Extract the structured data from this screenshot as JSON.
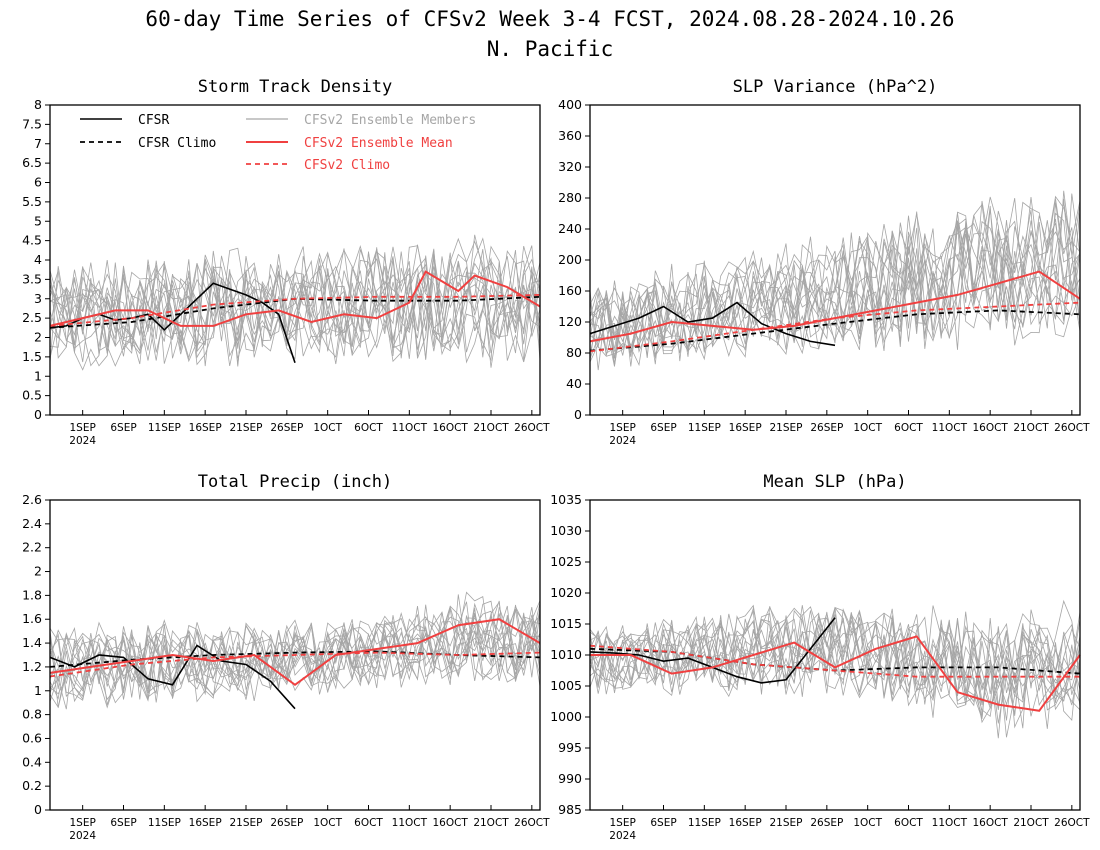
{
  "title": "60-day Time Series of CFSv2 Week 3-4 FCST, 2024.08.28-2024.10.26",
  "subtitle": "N. Pacific",
  "colors": {
    "cfsr": "#000000",
    "ensemble_members": "#a6a6a6",
    "ensemble_mean": "#f04040",
    "cfsv2_climo": "#f04040"
  },
  "legend": {
    "cfsr": "CFSR",
    "cfsr_climo": "CFSR Climo",
    "members": "CFSv2 Ensemble Members",
    "mean": "CFSv2 Ensemble Mean",
    "cfsv2_climo": "CFSv2 Climo"
  },
  "x_ticks": [
    "1SEP",
    "6SEP",
    "11SEP",
    "16SEP",
    "21SEP",
    "26SEP",
    "1OCT",
    "6OCT",
    "11OCT",
    "16OCT",
    "21OCT",
    "26OCT"
  ],
  "x_year": "2024",
  "chart_data": [
    {
      "type": "line",
      "title": "Storm Track Density",
      "xlabel": "",
      "ylabel": "",
      "ylim": [
        0,
        8
      ],
      "yticks": [
        "0",
        "0.5",
        "1",
        "1.5",
        "2",
        "2.5",
        "3",
        "3.5",
        "4",
        "4.5",
        "5",
        "5.5",
        "6",
        "6.5",
        "7",
        "7.5",
        "8"
      ],
      "grid": false,
      "legend_position": "top",
      "series": [
        {
          "name": "CFSR",
          "style": "solid-black",
          "x": [
            0,
            2,
            4,
            6,
            8,
            10,
            12,
            14,
            16,
            18,
            20,
            22,
            24,
            26,
            28,
            30
          ],
          "y": [
            2.25,
            2.3,
            2.5,
            2.6,
            2.45,
            2.5,
            2.6,
            2.2,
            2.6,
            3.0,
            3.4,
            3.25,
            3.1,
            2.9,
            2.6,
            1.35
          ]
        },
        {
          "name": "CFSR Climo",
          "style": "dashed-black",
          "x": [
            0,
            10,
            20,
            30,
            40,
            50,
            60
          ],
          "y": [
            2.25,
            2.4,
            2.75,
            3.0,
            2.95,
            2.95,
            3.05
          ]
        },
        {
          "name": "CFSv2 Ensemble Mean",
          "style": "solid-red",
          "x": [
            0,
            4,
            8,
            12,
            16,
            20,
            24,
            28,
            32,
            36,
            40,
            44,
            46,
            50,
            52,
            56,
            60
          ],
          "y": [
            2.3,
            2.5,
            2.7,
            2.7,
            2.3,
            2.3,
            2.6,
            2.7,
            2.4,
            2.6,
            2.5,
            2.9,
            3.7,
            3.2,
            3.6,
            3.3,
            2.8
          ]
        },
        {
          "name": "CFSv2 Climo",
          "style": "dashed-red",
          "x": [
            0,
            10,
            20,
            30,
            40,
            50,
            60
          ],
          "y": [
            2.3,
            2.5,
            2.85,
            3.0,
            3.05,
            3.05,
            3.1
          ]
        }
      ],
      "ensemble_spread": {
        "lower": [
          1.0,
          1.0,
          1.1,
          1.1,
          1.2,
          1.0,
          1.0
        ],
        "upper": [
          4.2,
          4.3,
          4.4,
          4.5,
          4.6,
          4.7,
          4.8
        ]
      }
    },
    {
      "type": "line",
      "title": "SLP Variance (hPa^2)",
      "xlabel": "",
      "ylabel": "",
      "ylim": [
        0,
        400
      ],
      "yticks": [
        "0",
        "40",
        "80",
        "120",
        "160",
        "200",
        "240",
        "280",
        "320",
        "360",
        "400"
      ],
      "grid": false,
      "series": [
        {
          "name": "CFSR",
          "style": "solid-black",
          "x": [
            0,
            3,
            6,
            9,
            12,
            15,
            18,
            21,
            24,
            27,
            30
          ],
          "y": [
            105,
            115,
            125,
            140,
            120,
            125,
            145,
            118,
            105,
            95,
            90
          ]
        },
        {
          "name": "CFSR Climo",
          "style": "dashed-black",
          "x": [
            0,
            10,
            20,
            30,
            40,
            50,
            60
          ],
          "y": [
            83,
            92,
            105,
            118,
            130,
            135,
            130
          ]
        },
        {
          "name": "CFSv2 Ensemble Mean",
          "style": "solid-red",
          "x": [
            0,
            5,
            10,
            15,
            20,
            25,
            30,
            35,
            40,
            45,
            50,
            55,
            60
          ],
          "y": [
            95,
            105,
            120,
            115,
            110,
            115,
            125,
            135,
            145,
            155,
            170,
            185,
            150
          ]
        },
        {
          "name": "CFSv2 Climo",
          "style": "dashed-red",
          "x": [
            0,
            10,
            20,
            30,
            40,
            50,
            60
          ],
          "y": [
            82,
            95,
            110,
            125,
            135,
            140,
            145
          ]
        }
      ],
      "ensemble_spread": {
        "lower": [
          50,
          60,
          60,
          65,
          70,
          80,
          90
        ],
        "upper": [
          170,
          200,
          220,
          250,
          270,
          300,
          310
        ]
      }
    },
    {
      "type": "line",
      "title": "Total Precip (inch)",
      "xlabel": "",
      "ylabel": "",
      "ylim": [
        0,
        2.6
      ],
      "yticks": [
        "0",
        "0.2",
        "0.4",
        "0.6",
        "0.8",
        "1",
        "1.2",
        "1.4",
        "1.6",
        "1.8",
        "2",
        "2.2",
        "2.4",
        "2.6"
      ],
      "grid": false,
      "series": [
        {
          "name": "CFSR",
          "style": "solid-black",
          "x": [
            0,
            3,
            6,
            9,
            12,
            15,
            18,
            21,
            24,
            27,
            30
          ],
          "y": [
            1.28,
            1.2,
            1.3,
            1.28,
            1.1,
            1.05,
            1.38,
            1.25,
            1.22,
            1.08,
            0.85
          ]
        },
        {
          "name": "CFSR Climo",
          "style": "dashed-black",
          "x": [
            0,
            10,
            20,
            30,
            40,
            50,
            60
          ],
          "y": [
            1.2,
            1.26,
            1.3,
            1.32,
            1.33,
            1.3,
            1.28
          ]
        },
        {
          "name": "CFSv2 Ensemble Mean",
          "style": "solid-red",
          "x": [
            0,
            5,
            10,
            15,
            20,
            25,
            30,
            35,
            40,
            45,
            50,
            55,
            60
          ],
          "y": [
            1.15,
            1.2,
            1.25,
            1.3,
            1.25,
            1.3,
            1.05,
            1.3,
            1.35,
            1.4,
            1.55,
            1.6,
            1.4
          ]
        },
        {
          "name": "CFSv2 Climo",
          "style": "dashed-red",
          "x": [
            0,
            10,
            20,
            30,
            40,
            50,
            60
          ],
          "y": [
            1.12,
            1.22,
            1.28,
            1.3,
            1.32,
            1.3,
            1.32
          ]
        }
      ],
      "ensemble_spread": {
        "lower": [
          0.8,
          0.85,
          0.9,
          0.9,
          0.95,
          1.0,
          1.0
        ],
        "upper": [
          1.6,
          1.6,
          1.6,
          1.65,
          1.7,
          1.85,
          1.85
        ]
      }
    },
    {
      "type": "line",
      "title": "Mean SLP (hPa)",
      "xlabel": "",
      "ylabel": "",
      "ylim": [
        985,
        1035
      ],
      "yticks": [
        "985",
        "990",
        "995",
        "1000",
        "1005",
        "1010",
        "1015",
        "1020",
        "1025",
        "1030",
        "1035"
      ],
      "grid": false,
      "series": [
        {
          "name": "CFSR",
          "style": "solid-black",
          "x": [
            0,
            3,
            6,
            9,
            12,
            15,
            18,
            21,
            24,
            27,
            30
          ],
          "y": [
            1010.5,
            1010.3,
            1010,
            1009,
            1009.5,
            1008,
            1006.5,
            1005.5,
            1006,
            1011,
            1016
          ]
        },
        {
          "name": "CFSR Climo",
          "style": "dashed-black",
          "x": [
            0,
            10,
            20,
            30,
            40,
            50,
            60
          ],
          "y": [
            1011,
            1010.5,
            1008.5,
            1007.5,
            1008,
            1008,
            1007
          ]
        },
        {
          "name": "CFSv2 Ensemble Mean",
          "style": "solid-red",
          "x": [
            0,
            5,
            10,
            15,
            20,
            25,
            30,
            35,
            40,
            45,
            50,
            55,
            60
          ],
          "y": [
            1010,
            1010,
            1007,
            1008,
            1010,
            1012,
            1008,
            1011,
            1013,
            1004,
            1002,
            1001,
            1010
          ]
        },
        {
          "name": "CFSv2 Climo",
          "style": "dashed-red",
          "x": [
            0,
            10,
            20,
            30,
            40,
            50,
            60
          ],
          "y": [
            1011.5,
            1010.5,
            1008.5,
            1007.5,
            1006.5,
            1006.5,
            1006.5
          ]
        }
      ],
      "ensemble_spread": {
        "lower": [
          1003,
          1003,
          1003,
          1002,
          1000,
          996,
          998
        ],
        "upper": [
          1016,
          1017,
          1019,
          1020,
          1019,
          1018,
          1019
        ]
      }
    }
  ]
}
